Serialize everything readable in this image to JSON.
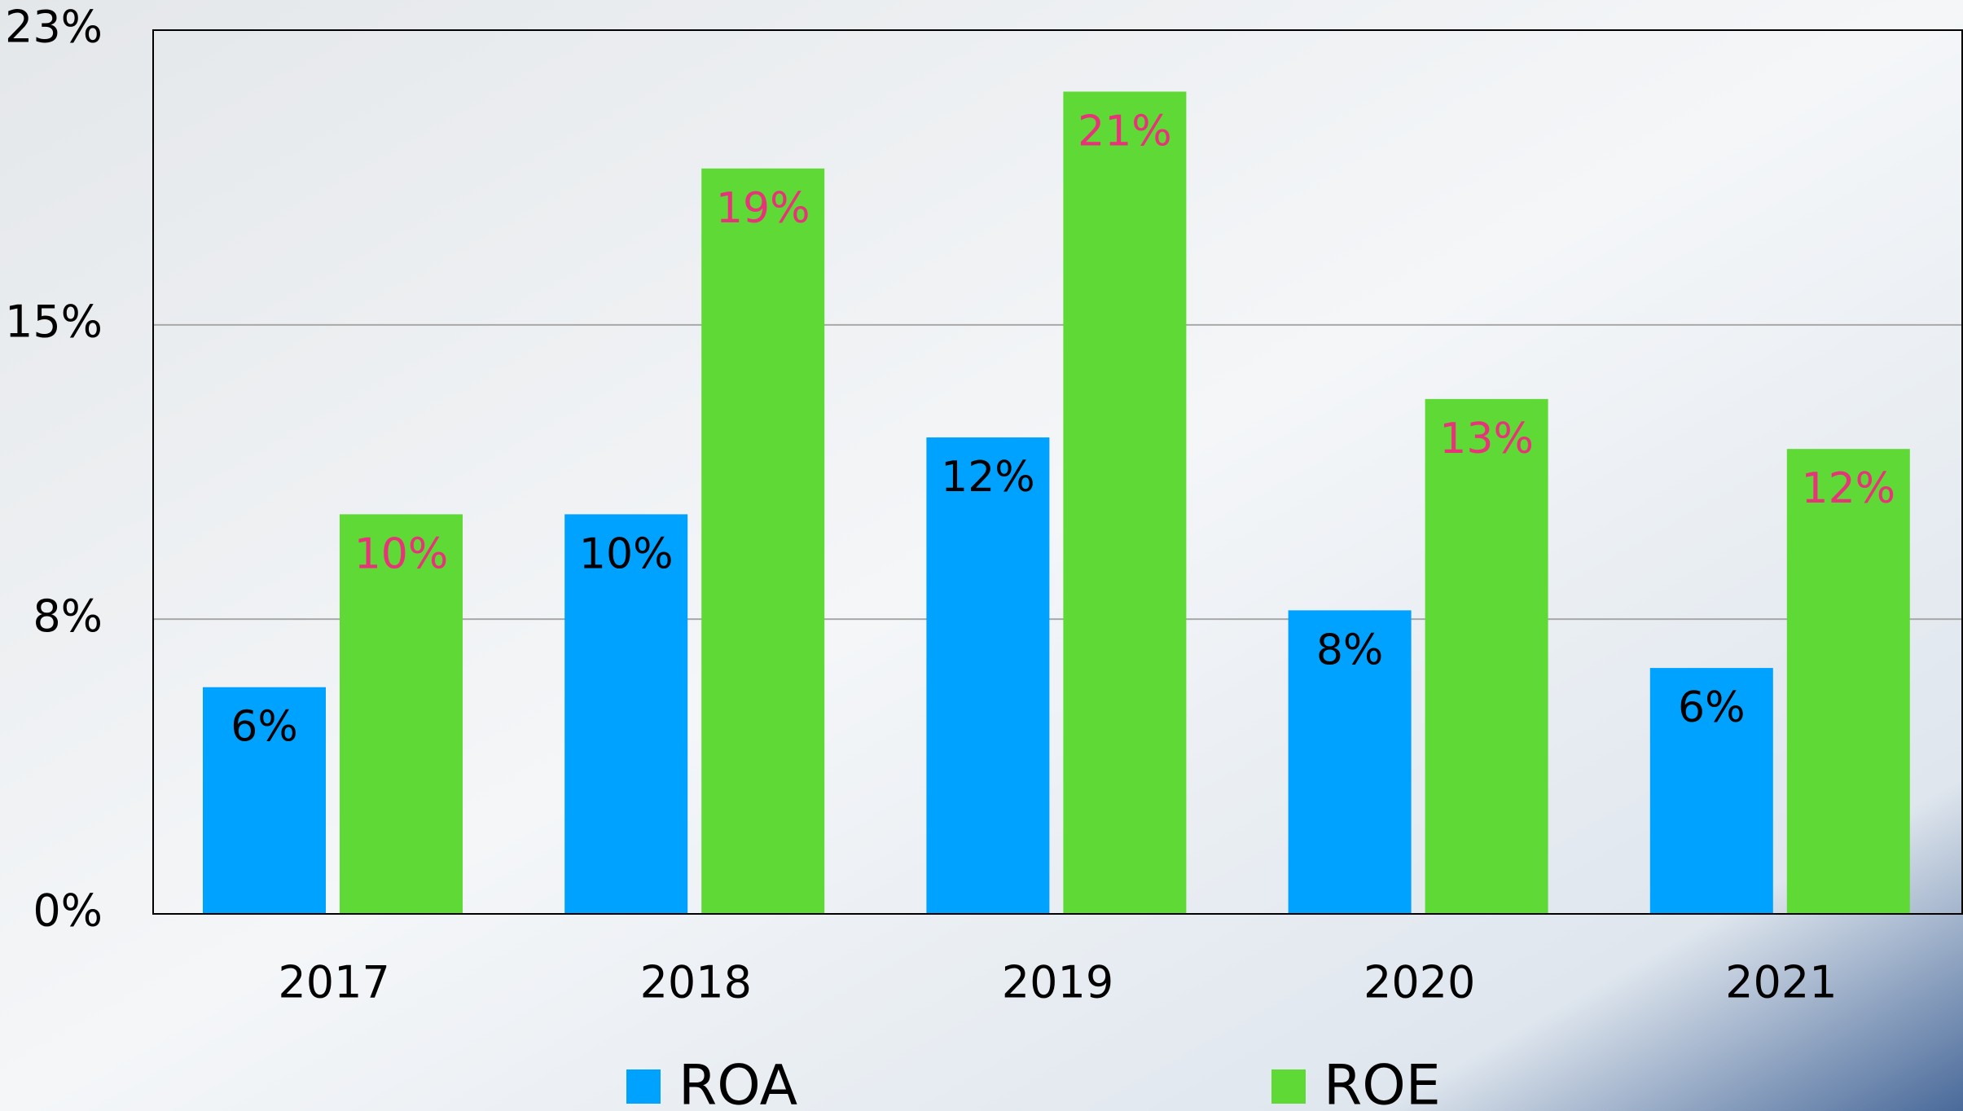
{
  "chart_data": {
    "type": "bar",
    "categories": [
      "2017",
      "2018",
      "2019",
      "2020",
      "2021"
    ],
    "series": [
      {
        "name": "ROA",
        "color": "#00a2ff",
        "label_color": "#000000",
        "values": [
          5.9,
          10.4,
          12.4,
          7.9,
          6.4
        ],
        "value_labels": [
          "6%",
          "10%",
          "12%",
          "8%",
          "6%"
        ]
      },
      {
        "name": "ROE",
        "color": "#5fd935",
        "label_color": "#e8337a",
        "values": [
          10.4,
          19.4,
          21.4,
          13.4,
          12.1
        ],
        "value_labels": [
          "10%",
          "19%",
          "21%",
          "13%",
          "12%"
        ]
      }
    ],
    "ylim": [
      0,
      23
    ],
    "yticks": [
      {
        "value": 0,
        "label": "0%"
      },
      {
        "value": 7.67,
        "label": "8%"
      },
      {
        "value": 15.33,
        "label": "15%"
      },
      {
        "value": 23,
        "label": "23%"
      }
    ],
    "grid": true,
    "legend": "bottom"
  }
}
